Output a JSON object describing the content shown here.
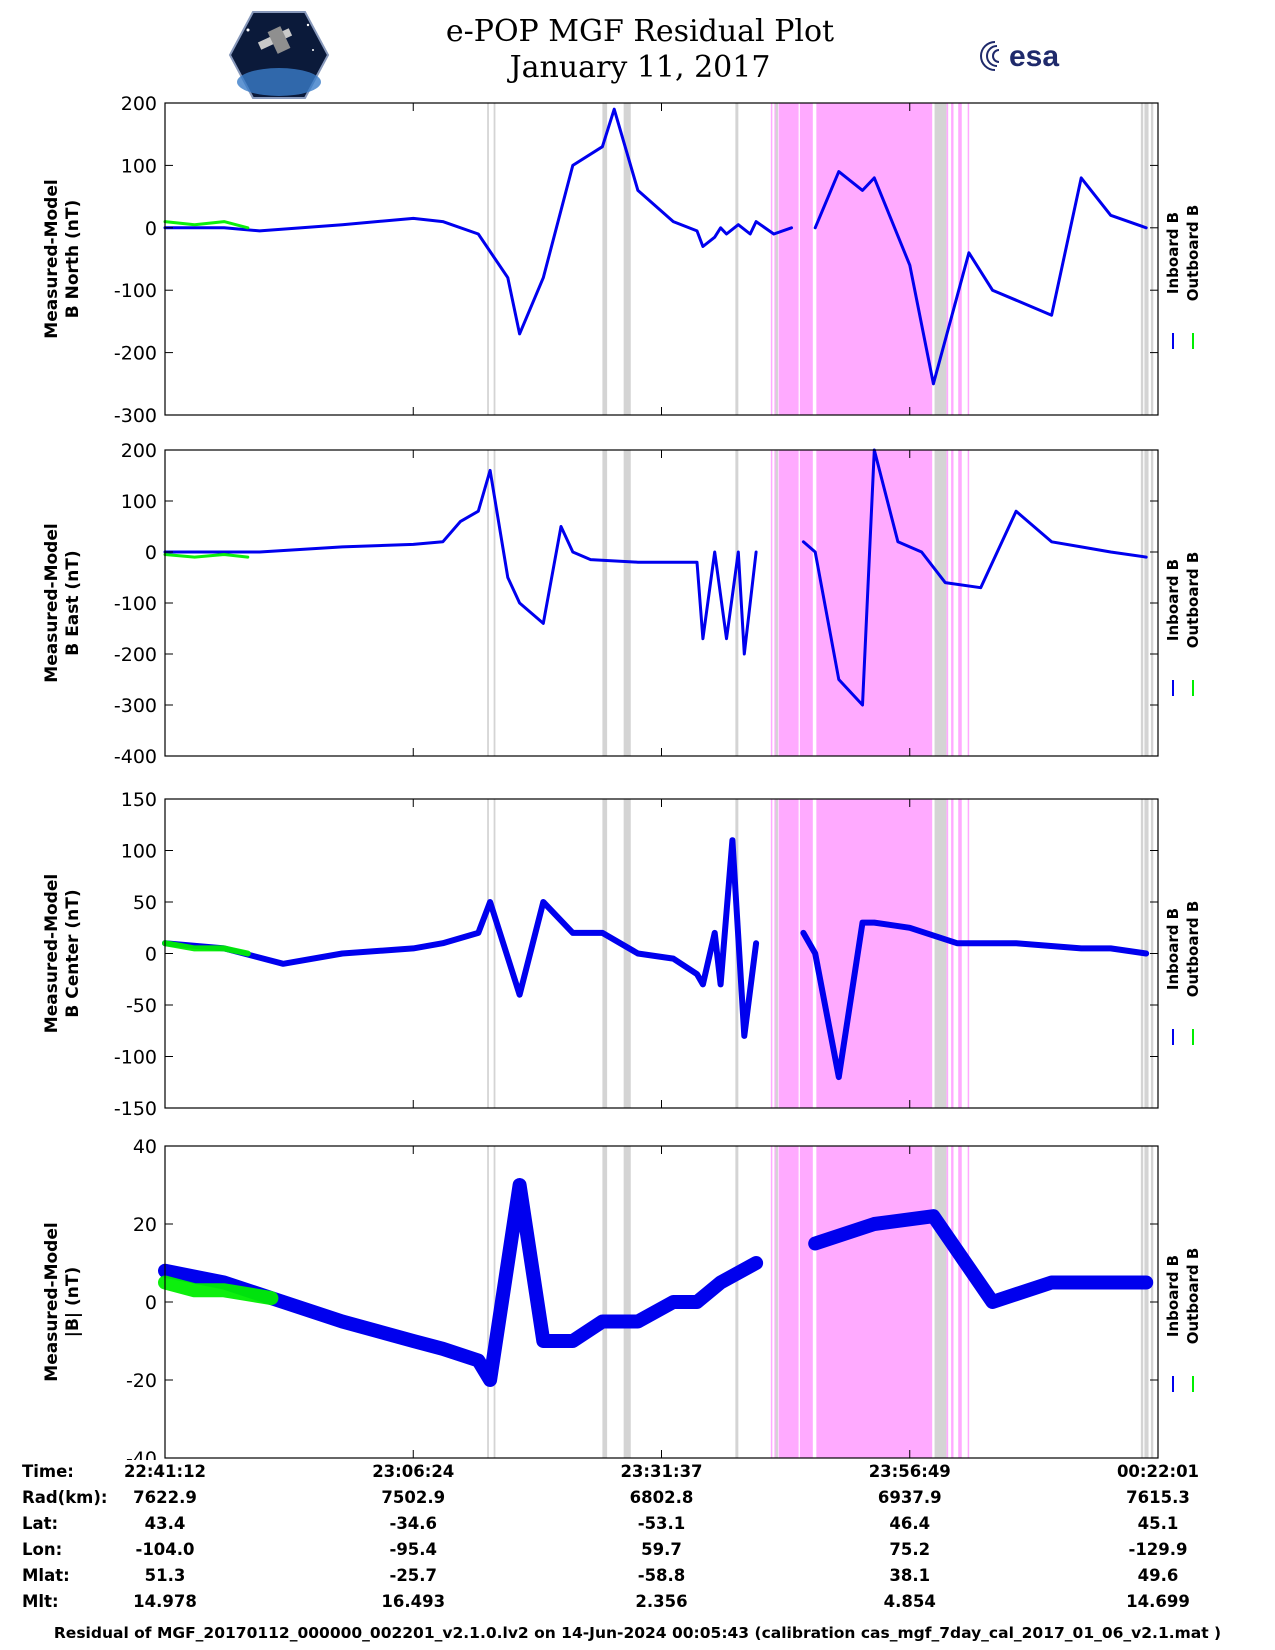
{
  "header": {
    "title_line1": "e-POP MGF Residual Plot",
    "title_line2": "January 11, 2017",
    "mission_logo": "cassiope-logo",
    "agency_logo": "esa-logo",
    "agency_text": "esa"
  },
  "chart_data": [
    {
      "type": "line",
      "ylabel_line1": "Measured-Model",
      "ylabel_line2": "B North (nT)",
      "ylim": [
        -300,
        200
      ],
      "yticks": [
        "200",
        "100",
        "0",
        "-100",
        "-200",
        "-300"
      ],
      "series": [
        {
          "name": "Inboard B",
          "color": "#0000ee",
          "x": [
            0,
            0.1,
            0.16,
            0.3,
            0.42,
            0.47,
            0.53,
            0.58,
            0.6,
            0.64,
            0.69,
            0.74,
            0.76,
            0.8,
            0.86,
            0.9,
            0.91,
            0.93,
            0.94,
            0.95,
            0.97,
            0.99,
            1.0,
            1.03,
            1.06,
            1.08,
            1.1,
            1.14,
            1.18,
            1.2,
            1.26,
            1.3,
            1.36,
            1.4,
            1.5,
            1.55,
            1.6,
            1.66
          ],
          "y": [
            0,
            0,
            -5,
            5,
            15,
            10,
            -10,
            -80,
            -170,
            -80,
            100,
            130,
            190,
            60,
            10,
            -5,
            -30,
            -15,
            0,
            -10,
            5,
            -10,
            10,
            -10,
            0,
            null,
            0,
            90,
            60,
            80,
            -60,
            -250,
            -40,
            -100,
            -140,
            80,
            20,
            0
          ]
        },
        {
          "name": "Outboard B",
          "color": "#00ee00",
          "x": [
            0,
            0.05,
            0.1,
            0.14
          ],
          "y": [
            10,
            5,
            10,
            0
          ]
        }
      ]
    },
    {
      "type": "line",
      "ylabel_line1": "Measured-Model",
      "ylabel_line2": "B East (nT)",
      "ylim": [
        -400,
        200
      ],
      "yticks": [
        "200",
        "100",
        "0",
        "-100",
        "-200",
        "-300",
        "-400"
      ],
      "series": [
        {
          "name": "Inboard B",
          "color": "#0000ee",
          "x": [
            0,
            0.1,
            0.16,
            0.3,
            0.42,
            0.47,
            0.5,
            0.53,
            0.55,
            0.58,
            0.6,
            0.64,
            0.67,
            0.69,
            0.72,
            0.8,
            0.86,
            0.9,
            0.91,
            0.93,
            0.95,
            0.97,
            0.98,
            1.0,
            1.03,
            1.06,
            1.08,
            1.1,
            1.14,
            1.18,
            1.2,
            1.24,
            1.28,
            1.32,
            1.38,
            1.44,
            1.5,
            1.55,
            1.6,
            1.66
          ],
          "y": [
            0,
            0,
            0,
            10,
            15,
            20,
            60,
            80,
            160,
            -50,
            -100,
            -140,
            50,
            0,
            -15,
            -20,
            -20,
            -20,
            -170,
            0,
            -170,
            0,
            -200,
            0,
            null,
            null,
            20,
            0,
            -250,
            -300,
            200,
            20,
            0,
            -60,
            -70,
            80,
            20,
            10,
            0,
            -10
          ]
        },
        {
          "name": "Outboard B",
          "color": "#00ee00",
          "x": [
            0,
            0.05,
            0.1,
            0.14
          ],
          "y": [
            -5,
            -10,
            -5,
            -10
          ]
        }
      ]
    },
    {
      "type": "line",
      "ylabel_line1": "Measured-Model",
      "ylabel_line2": "B Center (nT)",
      "ylim": [
        -150,
        150
      ],
      "yticks": [
        "150",
        "100",
        "50",
        "0",
        "-50",
        "-100",
        "-150"
      ],
      "series": [
        {
          "name": "Inboard B",
          "color": "#0000ee",
          "x": [
            0,
            0.1,
            0.2,
            0.3,
            0.42,
            0.47,
            0.53,
            0.55,
            0.6,
            0.64,
            0.69,
            0.74,
            0.8,
            0.86,
            0.9,
            0.91,
            0.93,
            0.94,
            0.96,
            0.98,
            1.0,
            1.03,
            1.06,
            1.08,
            1.1,
            1.14,
            1.18,
            1.2,
            1.26,
            1.34,
            1.44,
            1.55,
            1.6,
            1.66
          ],
          "y": [
            10,
            5,
            -10,
            0,
            5,
            10,
            20,
            50,
            -40,
            50,
            20,
            20,
            0,
            -5,
            -20,
            -30,
            20,
            -30,
            110,
            -80,
            10,
            null,
            null,
            20,
            0,
            -120,
            30,
            30,
            25,
            10,
            10,
            5,
            5,
            0
          ]
        },
        {
          "name": "Outboard B",
          "color": "#00ee00",
          "x": [
            0,
            0.05,
            0.1,
            0.14
          ],
          "y": [
            10,
            5,
            5,
            0
          ]
        }
      ]
    },
    {
      "type": "line",
      "ylabel_line1": "Measured-Model",
      "ylabel_line2": "|B| (nT)",
      "ylim": [
        -40,
        40
      ],
      "yticks": [
        "40",
        "20",
        "0",
        "-20",
        "-40"
      ],
      "series": [
        {
          "name": "Inboard B",
          "color": "#0000ee",
          "x": [
            0,
            0.1,
            0.2,
            0.3,
            0.42,
            0.47,
            0.53,
            0.55,
            0.6,
            0.64,
            0.69,
            0.74,
            0.8,
            0.86,
            0.9,
            0.94,
            1.0,
            1.03,
            1.06,
            1.1,
            1.2,
            1.3,
            1.4,
            1.5,
            1.6,
            1.66
          ],
          "y": [
            8,
            5,
            0,
            -5,
            -10,
            -12,
            -15,
            -20,
            30,
            -10,
            -10,
            -5,
            -5,
            0,
            0,
            5,
            10,
            null,
            null,
            15,
            20,
            22,
            0,
            5,
            5,
            5
          ]
        },
        {
          "name": "Outboard B",
          "color": "#00ee00",
          "x": [
            0,
            0.05,
            0.1,
            0.14,
            0.18
          ],
          "y": [
            5,
            3,
            3,
            2,
            1
          ]
        }
      ]
    }
  ],
  "legend": {
    "inboard": "Inboard B",
    "outboard": "Outboard B"
  },
  "colors": {
    "inboard": "#0000ee",
    "outboard": "#00ee00",
    "gap_pink": "#ffaaff",
    "gap_grey": "#d4d4d4",
    "axis": "#000000"
  },
  "x_axis": {
    "tick_times": [
      "22:41:12",
      "23:06:24",
      "23:31:37",
      "23:56:49",
      "00:22:01"
    ],
    "tick_positions_hours": [
      0,
      0.42,
      0.84,
      1.26,
      1.68
    ]
  },
  "shading": {
    "grey_bands_hours": [
      [
        0.545,
        0.548
      ],
      [
        0.556,
        0.559
      ],
      [
        0.74,
        0.748
      ],
      [
        0.776,
        0.788
      ],
      [
        0.965,
        0.97
      ],
      [
        1.033,
        1.037
      ],
      [
        1.302,
        1.322
      ],
      [
        1.651,
        1.655
      ],
      [
        1.657,
        1.664
      ],
      [
        1.668,
        1.672
      ]
    ],
    "pink_bands_hours": [
      [
        1.025,
        1.027
      ],
      [
        1.031,
        1.036
      ],
      [
        1.038,
        1.072
      ],
      [
        1.074,
        1.096
      ],
      [
        1.102,
        1.298
      ],
      [
        1.322,
        1.325
      ],
      [
        1.33,
        1.334
      ],
      [
        1.342,
        1.348
      ],
      [
        1.358,
        1.36
      ]
    ]
  },
  "info_table": {
    "row_labels": [
      "Time:",
      "Rad(km):",
      "Lat:",
      "Lon:",
      "Mlat:",
      "Mlt:"
    ],
    "columns": [
      [
        "22:41:12",
        "7622.9",
        "43.4",
        "-104.0",
        "51.3",
        "14.978"
      ],
      [
        "23:06:24",
        "7502.9",
        "-34.6",
        "-95.4",
        "-25.7",
        "16.493"
      ],
      [
        "23:31:37",
        "6802.8",
        "-53.1",
        "59.7",
        "-58.8",
        "2.356"
      ],
      [
        "23:56:49",
        "6937.9",
        "46.4",
        "75.2",
        "38.1",
        "4.854"
      ],
      [
        "00:22:01",
        "7615.3",
        "45.1",
        "-129.9",
        "49.6",
        "14.699"
      ]
    ]
  },
  "footer": "Residual of MGF_20170112_000000_002201_v2.1.0.lv2 on 14-Jun-2024 00:05:43 (calibration cas_mgf_7day_cal_2017_01_06_v2.1.mat )"
}
